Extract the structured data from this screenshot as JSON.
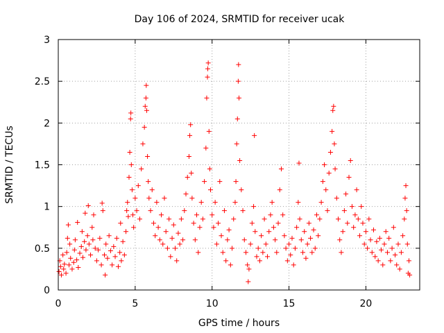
{
  "chart_data": {
    "type": "scatter",
    "title": "Day 106 of 2024, SRMTID for receiver ucak",
    "xlabel": "GPS time / hours",
    "ylabel": "SRMTID / TECUs",
    "xlim": [
      0,
      23.5
    ],
    "ylim": [
      0,
      3
    ],
    "xticks": [
      0,
      5,
      10,
      15,
      20
    ],
    "yticks": [
      0,
      0.5,
      1,
      1.5,
      2,
      2.5,
      3
    ],
    "ytick_labels": [
      "0",
      "0.5",
      "1",
      "1.5",
      "2",
      "2.5",
      "3"
    ],
    "grid": true,
    "marker": "+",
    "marker_color": "#ff0000",
    "series": [
      {
        "name": "SRMTID",
        "points": [
          [
            0.05,
            0.22
          ],
          [
            0.1,
            0.35
          ],
          [
            0.15,
            0.28
          ],
          [
            0.2,
            0.18
          ],
          [
            0.3,
            0.42
          ],
          [
            0.35,
            0.25
          ],
          [
            0.4,
            0.31
          ],
          [
            0.5,
            0.2
          ],
          [
            0.55,
            0.45
          ],
          [
            0.6,
            0.62
          ],
          [
            0.65,
            0.78
          ],
          [
            0.7,
            0.3
          ],
          [
            0.75,
            0.55
          ],
          [
            0.8,
            0.38
          ],
          [
            0.9,
            0.25
          ],
          [
            1.0,
            0.33
          ],
          [
            1.05,
            0.48
          ],
          [
            1.1,
            0.6
          ],
          [
            1.2,
            0.36
          ],
          [
            1.25,
            0.81
          ],
          [
            1.3,
            0.27
          ],
          [
            1.4,
            0.44
          ],
          [
            1.5,
            0.52
          ],
          [
            1.55,
            0.7
          ],
          [
            1.6,
            0.39
          ],
          [
            1.7,
            0.58
          ],
          [
            1.75,
            0.92
          ],
          [
            1.8,
            0.48
          ],
          [
            1.9,
            0.65
          ],
          [
            1.95,
            1.01
          ],
          [
            2.0,
            0.55
          ],
          [
            2.1,
            0.42
          ],
          [
            2.2,
            0.75
          ],
          [
            2.25,
            0.6
          ],
          [
            2.3,
            0.9
          ],
          [
            2.4,
            0.5
          ],
          [
            2.5,
            0.35
          ],
          [
            2.6,
            0.48
          ],
          [
            2.7,
            0.62
          ],
          [
            2.8,
            0.3
          ],
          [
            2.85,
            1.04
          ],
          [
            2.9,
            0.95
          ],
          [
            3.0,
            0.42
          ],
          [
            3.05,
            0.18
          ],
          [
            3.1,
            0.55
          ],
          [
            3.2,
            0.38
          ],
          [
            3.3,
            0.65
          ],
          [
            3.4,
            0.47
          ],
          [
            3.5,
            0.3
          ],
          [
            3.6,
            0.52
          ],
          [
            3.7,
            0.4
          ],
          [
            3.8,
            0.62
          ],
          [
            3.9,
            0.28
          ],
          [
            4.0,
            0.45
          ],
          [
            4.05,
            0.8
          ],
          [
            4.1,
            0.35
          ],
          [
            4.2,
            0.58
          ],
          [
            4.3,
            0.42
          ],
          [
            4.4,
            0.7
          ],
          [
            4.45,
            0.95
          ],
          [
            4.5,
            1.05
          ],
          [
            4.55,
            0.88
          ],
          [
            4.6,
            1.35
          ],
          [
            4.65,
            1.65
          ],
          [
            4.7,
            2.05
          ],
          [
            4.72,
            2.12
          ],
          [
            4.75,
            1.5
          ],
          [
            4.8,
            1.2
          ],
          [
            4.85,
            0.9
          ],
          [
            4.9,
            0.75
          ],
          [
            5.0,
            1.1
          ],
          [
            5.1,
            0.95
          ],
          [
            5.2,
            1.25
          ],
          [
            5.3,
            0.85
          ],
          [
            5.4,
            1.45
          ],
          [
            5.5,
            1.75
          ],
          [
            5.6,
            1.95
          ],
          [
            5.65,
            2.2
          ],
          [
            5.7,
            2.3
          ],
          [
            5.72,
            2.45
          ],
          [
            5.75,
            2.15
          ],
          [
            5.8,
            1.6
          ],
          [
            5.85,
            1.3
          ],
          [
            5.9,
            1.1
          ],
          [
            6.0,
            0.95
          ],
          [
            6.1,
            1.2
          ],
          [
            6.2,
            0.8
          ],
          [
            6.3,
            0.65
          ],
          [
            6.4,
            1.05
          ],
          [
            6.5,
            0.75
          ],
          [
            6.6,
            0.6
          ],
          [
            6.7,
            0.9
          ],
          [
            6.8,
            0.55
          ],
          [
            6.9,
            1.1
          ],
          [
            7.0,
            0.7
          ],
          [
            7.1,
            0.5
          ],
          [
            7.2,
            0.85
          ],
          [
            7.3,
            0.4
          ],
          [
            7.4,
            0.62
          ],
          [
            7.5,
            0.78
          ],
          [
            7.6,
            0.5
          ],
          [
            7.7,
            0.35
          ],
          [
            7.8,
            0.68
          ],
          [
            7.9,
            0.55
          ],
          [
            8.0,
            0.85
          ],
          [
            8.1,
            0.6
          ],
          [
            8.2,
            0.95
          ],
          [
            8.3,
            1.15
          ],
          [
            8.4,
            1.35
          ],
          [
            8.5,
            1.6
          ],
          [
            8.55,
            1.85
          ],
          [
            8.6,
            1.98
          ],
          [
            8.65,
            1.4
          ],
          [
            8.7,
            1.1
          ],
          [
            8.8,
            0.8
          ],
          [
            8.9,
            0.6
          ],
          [
            9.0,
            0.9
          ],
          [
            9.1,
            0.45
          ],
          [
            9.2,
            0.75
          ],
          [
            9.3,
            1.05
          ],
          [
            9.4,
            0.85
          ],
          [
            9.5,
            1.3
          ],
          [
            9.6,
            1.7
          ],
          [
            9.65,
            2.3
          ],
          [
            9.7,
            2.55
          ],
          [
            9.72,
            2.65
          ],
          [
            9.75,
            2.72
          ],
          [
            9.8,
            1.9
          ],
          [
            9.85,
            1.45
          ],
          [
            9.9,
            1.2
          ],
          [
            10.0,
            0.9
          ],
          [
            10.1,
            0.75
          ],
          [
            10.2,
            1.05
          ],
          [
            10.3,
            0.55
          ],
          [
            10.4,
            0.8
          ],
          [
            10.5,
            1.3
          ],
          [
            10.6,
            0.65
          ],
          [
            10.7,
            0.45
          ],
          [
            10.8,
            0.95
          ],
          [
            10.9,
            0.35
          ],
          [
            11.0,
            0.6
          ],
          [
            11.1,
            0.72
          ],
          [
            11.2,
            0.3
          ],
          [
            11.3,
            0.5
          ],
          [
            11.4,
            0.85
          ],
          [
            11.5,
            1.05
          ],
          [
            11.55,
            1.3
          ],
          [
            11.6,
            1.75
          ],
          [
            11.65,
            2.05
          ],
          [
            11.7,
            2.5
          ],
          [
            11.72,
            2.7
          ],
          [
            11.75,
            2.3
          ],
          [
            11.8,
            1.55
          ],
          [
            11.9,
            1.2
          ],
          [
            12.0,
            0.95
          ],
          [
            12.1,
            0.6
          ],
          [
            12.2,
            0.45
          ],
          [
            12.3,
            0.3
          ],
          [
            12.35,
            0.1
          ],
          [
            12.4,
            0.25
          ],
          [
            12.5,
            0.55
          ],
          [
            12.6,
            0.8
          ],
          [
            12.7,
            1.0
          ],
          [
            12.75,
            1.85
          ],
          [
            12.8,
            0.7
          ],
          [
            12.9,
            0.4
          ],
          [
            13.0,
            0.5
          ],
          [
            13.1,
            0.35
          ],
          [
            13.2,
            0.65
          ],
          [
            13.3,
            0.45
          ],
          [
            13.4,
            0.85
          ],
          [
            13.5,
            0.55
          ],
          [
            13.6,
            0.4
          ],
          [
            13.7,
            0.7
          ],
          [
            13.8,
            0.9
          ],
          [
            13.9,
            1.05
          ],
          [
            14.0,
            0.75
          ],
          [
            14.1,
            0.6
          ],
          [
            14.2,
            0.45
          ],
          [
            14.3,
            0.8
          ],
          [
            14.4,
            1.2
          ],
          [
            14.5,
            1.45
          ],
          [
            14.6,
            0.9
          ],
          [
            14.7,
            0.65
          ],
          [
            14.8,
            0.5
          ],
          [
            14.9,
            0.35
          ],
          [
            15.0,
            0.55
          ],
          [
            15.1,
            0.42
          ],
          [
            15.2,
            0.62
          ],
          [
            15.3,
            0.3
          ],
          [
            15.4,
            0.5
          ],
          [
            15.5,
            0.75
          ],
          [
            15.6,
            1.05
          ],
          [
            15.65,
            1.52
          ],
          [
            15.7,
            0.85
          ],
          [
            15.8,
            0.6
          ],
          [
            15.9,
            0.45
          ],
          [
            16.0,
            0.7
          ],
          [
            16.1,
            0.38
          ],
          [
            16.2,
            0.55
          ],
          [
            16.3,
            0.8
          ],
          [
            16.4,
            0.62
          ],
          [
            16.5,
            0.45
          ],
          [
            16.6,
            0.72
          ],
          [
            16.7,
            0.5
          ],
          [
            16.8,
            0.9
          ],
          [
            16.9,
            0.65
          ],
          [
            17.0,
            0.85
          ],
          [
            17.1,
            1.05
          ],
          [
            17.2,
            1.3
          ],
          [
            17.3,
            1.5
          ],
          [
            17.4,
            1.2
          ],
          [
            17.5,
            0.95
          ],
          [
            17.6,
            1.4
          ],
          [
            17.7,
            1.65
          ],
          [
            17.8,
            1.9
          ],
          [
            17.85,
            2.15
          ],
          [
            17.9,
            2.2
          ],
          [
            17.95,
            1.75
          ],
          [
            18.0,
            1.45
          ],
          [
            18.1,
            1.1
          ],
          [
            18.2,
            0.85
          ],
          [
            18.3,
            0.6
          ],
          [
            18.4,
            0.45
          ],
          [
            18.5,
            0.7
          ],
          [
            18.6,
            0.95
          ],
          [
            18.7,
            1.15
          ],
          [
            18.8,
            0.8
          ],
          [
            18.9,
            1.35
          ],
          [
            19.0,
            1.55
          ],
          [
            19.1,
            1.0
          ],
          [
            19.2,
            0.75
          ],
          [
            19.3,
            0.9
          ],
          [
            19.4,
            1.2
          ],
          [
            19.5,
            0.85
          ],
          [
            19.6,
            0.65
          ],
          [
            19.7,
            1.0
          ],
          [
            19.8,
            0.8
          ],
          [
            19.9,
            0.55
          ],
          [
            20.0,
            0.7
          ],
          [
            20.1,
            0.5
          ],
          [
            20.2,
            0.85
          ],
          [
            20.3,
            0.6
          ],
          [
            20.4,
            0.45
          ],
          [
            20.5,
            0.72
          ],
          [
            20.6,
            0.4
          ],
          [
            20.7,
            0.58
          ],
          [
            20.8,
            0.35
          ],
          [
            20.9,
            0.62
          ],
          [
            21.0,
            0.48
          ],
          [
            21.1,
            0.3
          ],
          [
            21.2,
            0.55
          ],
          [
            21.3,
            0.7
          ],
          [
            21.4,
            0.45
          ],
          [
            21.5,
            0.62
          ],
          [
            21.6,
            0.35
          ],
          [
            21.7,
            0.5
          ],
          [
            21.8,
            0.75
          ],
          [
            21.9,
            0.42
          ],
          [
            22.0,
            0.3
          ],
          [
            22.1,
            0.55
          ],
          [
            22.2,
            0.25
          ],
          [
            22.3,
            0.45
          ],
          [
            22.4,
            0.65
          ],
          [
            22.5,
            0.85
          ],
          [
            22.55,
            1.1
          ],
          [
            22.6,
            1.25
          ],
          [
            22.65,
            0.95
          ],
          [
            22.7,
            0.55
          ],
          [
            22.75,
            0.2
          ],
          [
            22.8,
            0.35
          ],
          [
            22.85,
            0.18
          ]
        ]
      }
    ]
  }
}
